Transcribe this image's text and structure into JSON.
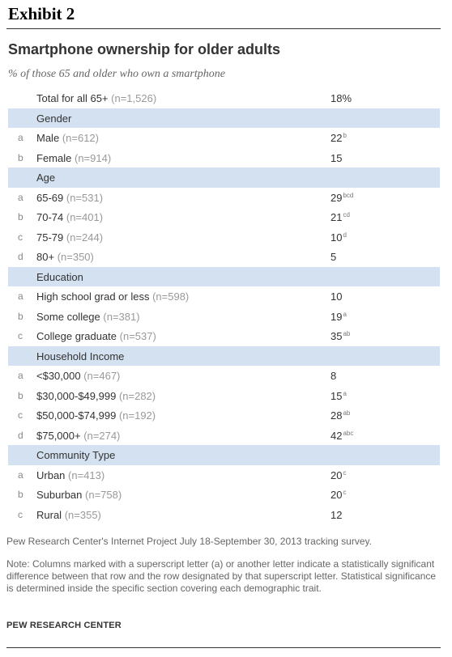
{
  "exhibit": "Exhibit 2",
  "chart_data": {
    "type": "table",
    "title": "Smartphone ownership for older adults",
    "subtitle": "% of those 65 and older who own a smartphone",
    "rows": [
      {
        "kind": "total",
        "letter": "",
        "label": "Total for all 65+",
        "n": "(n=1,526)",
        "value": "18%",
        "sup": ""
      },
      {
        "kind": "header",
        "label": "Gender"
      },
      {
        "kind": "data",
        "letter": "a",
        "label": "Male",
        "n": "(n=612)",
        "value": "22",
        "sup": "b"
      },
      {
        "kind": "data",
        "letter": "b",
        "label": "Female",
        "n": "(n=914)",
        "value": "15",
        "sup": ""
      },
      {
        "kind": "header",
        "label": "Age"
      },
      {
        "kind": "data",
        "letter": "a",
        "label": "65-69",
        "n": "(n=531)",
        "value": "29",
        "sup": "bcd"
      },
      {
        "kind": "data",
        "letter": "b",
        "label": "70-74",
        "n": "(n=401)",
        "value": "21",
        "sup": "cd"
      },
      {
        "kind": "data",
        "letter": "c",
        "label": "75-79",
        "n": "(n=244)",
        "value": "10",
        "sup": "d"
      },
      {
        "kind": "data",
        "letter": "d",
        "label": "80+",
        "n": "(n=350)",
        "value": "5",
        "sup": ""
      },
      {
        "kind": "header",
        "label": "Education"
      },
      {
        "kind": "data",
        "letter": "a",
        "label": "High school grad or less",
        "n": "(n=598)",
        "value": "10",
        "sup": ""
      },
      {
        "kind": "data",
        "letter": "b",
        "label": "Some college",
        "n": "(n=381)",
        "value": "19",
        "sup": "a"
      },
      {
        "kind": "data",
        "letter": "c",
        "label": "College graduate",
        "n": "(n=537)",
        "value": "35",
        "sup": "ab"
      },
      {
        "kind": "header",
        "label": "Household Income"
      },
      {
        "kind": "data",
        "letter": "a",
        "label": "<$30,000",
        "n": "(n=467)",
        "value": "8",
        "sup": ""
      },
      {
        "kind": "data",
        "letter": "b",
        "label": "$30,000-$49,999",
        "n": "(n=282)",
        "value": "15",
        "sup": "a"
      },
      {
        "kind": "data",
        "letter": "c",
        "label": "$50,000-$74,999",
        "n": "(n=192)",
        "value": "28",
        "sup": "ab"
      },
      {
        "kind": "data",
        "letter": "d",
        "label": "$75,000+",
        "n": "(n=274)",
        "value": "42",
        "sup": "abc"
      },
      {
        "kind": "header",
        "label": "Community Type"
      },
      {
        "kind": "data",
        "letter": "a",
        "label": "Urban",
        "n": "(n=413)",
        "value": "20",
        "sup": "c"
      },
      {
        "kind": "data",
        "letter": "b",
        "label": "Suburban",
        "n": "(n=758)",
        "value": "20",
        "sup": "c"
      },
      {
        "kind": "data",
        "letter": "c",
        "label": "Rural",
        "n": "(n=355)",
        "value": "12",
        "sup": ""
      }
    ]
  },
  "source": "Pew Research Center's Internet Project July 18-September 30, 2013 tracking survey.",
  "note": "Note: Columns marked with a superscript letter (a) or another letter indicate a statistically significant difference between that row and the row designated by that superscript letter. Statistical significance is determined inside the specific section covering each demographic trait.",
  "credit": "PEW RESEARCH CENTER",
  "colors": {
    "section_header_bg": "#d4e1f0"
  }
}
